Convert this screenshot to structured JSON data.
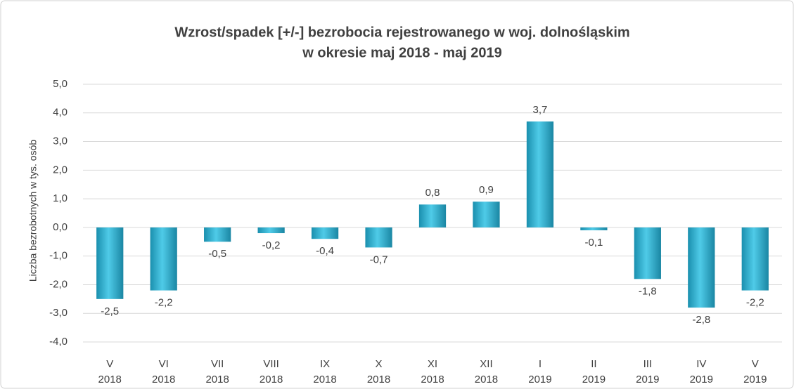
{
  "chart_data": {
    "type": "bar",
    "title": [
      "Wzrost/spadek [+/-] bezrobocia rejestrowanego w woj. dolnośląskim",
      "w okresie maj 2018 - maj 2019"
    ],
    "y_label": "Liczba bezrobotnych w tys. osób",
    "categories": [
      [
        "V",
        "2018"
      ],
      [
        "VI",
        "2018"
      ],
      [
        "VII",
        "2018"
      ],
      [
        "VIII",
        "2018"
      ],
      [
        "IX",
        "2018"
      ],
      [
        "X",
        "2018"
      ],
      [
        "XI",
        "2018"
      ],
      [
        "XII",
        "2018"
      ],
      [
        "I",
        "2019"
      ],
      [
        "II",
        "2019"
      ],
      [
        "III",
        "2019"
      ],
      [
        "IV",
        "2019"
      ],
      [
        "V",
        "2019"
      ]
    ],
    "values": [
      -2.5,
      -2.2,
      -0.5,
      -0.2,
      -0.4,
      -0.7,
      0.8,
      0.9,
      3.7,
      -0.1,
      -1.8,
      -2.8,
      -2.2
    ],
    "value_labels": [
      "-2,5",
      "-2,2",
      "-0,5",
      "-0,2",
      "-0,4",
      "-0,7",
      "0,8",
      "0,9",
      "3,7",
      "-0,1",
      "-1,8",
      "-2,8",
      "-2,2"
    ],
    "color": "#31b3d4",
    "ylim": [
      -4,
      5
    ],
    "yticks": [
      {
        "value": -4,
        "label": "-4,0"
      },
      {
        "value": -3,
        "label": "-3,0"
      },
      {
        "value": -2,
        "label": "-2,0"
      },
      {
        "value": -1,
        "label": "-1,0"
      },
      {
        "value": 0,
        "label": "0,0"
      },
      {
        "value": 1,
        "label": "1,0"
      },
      {
        "value": 2,
        "label": "2,0"
      },
      {
        "value": 3,
        "label": "3,0"
      },
      {
        "value": 4,
        "label": "4,0"
      },
      {
        "value": 5,
        "label": "5,0"
      }
    ],
    "grid": true
  }
}
